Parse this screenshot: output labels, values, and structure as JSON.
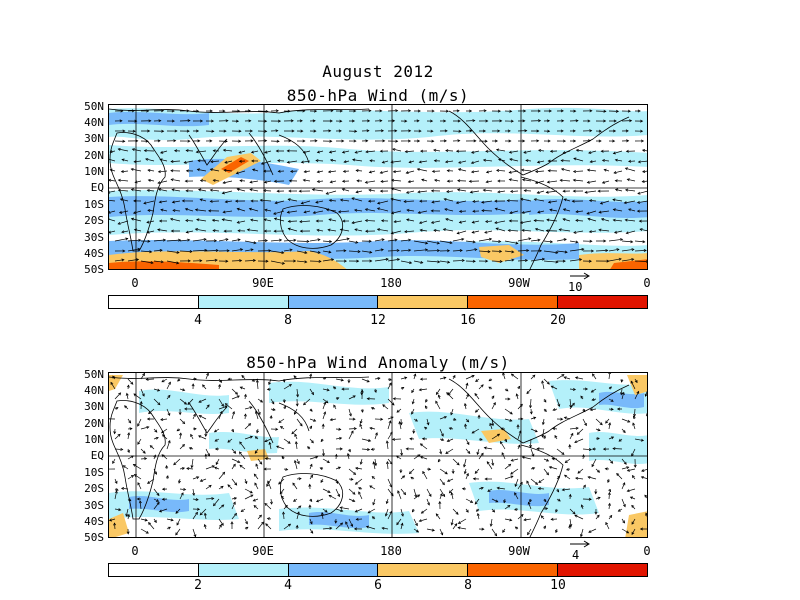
{
  "figure": {
    "title": "August 2012",
    "panels": [
      {
        "id": "wind",
        "title": "850-hPa Wind (m/s)",
        "lat_labels": [
          "50N",
          "40N",
          "30N",
          "20N",
          "10N",
          "EQ",
          "10S",
          "20S",
          "30S",
          "40S",
          "50S"
        ],
        "lon_labels": [
          "0",
          "90E",
          "180",
          "90W",
          "0"
        ],
        "reference_vector": "10",
        "colorbar": {
          "colors": [
            "#ffffff",
            "#b4f0fa",
            "#78b9fa",
            "#fac864",
            "#fa6400",
            "#e11400"
          ],
          "labels": [
            "4",
            "8",
            "12",
            "16",
            "20"
          ]
        }
      },
      {
        "id": "anomaly",
        "title": "850-hPa Wind Anomaly (m/s)",
        "lat_labels": [
          "50N",
          "40N",
          "30N",
          "20N",
          "10N",
          "EQ",
          "10S",
          "20S",
          "30S",
          "40S",
          "50S"
        ],
        "lon_labels": [
          "0",
          "90E",
          "180",
          "90W",
          "0"
        ],
        "reference_vector": "4",
        "colorbar": {
          "colors": [
            "#ffffff",
            "#b4f0fa",
            "#78b9fa",
            "#fac864",
            "#fa6400",
            "#e11400"
          ],
          "labels": [
            "2",
            "4",
            "6",
            "8",
            "10"
          ]
        }
      }
    ]
  }
}
